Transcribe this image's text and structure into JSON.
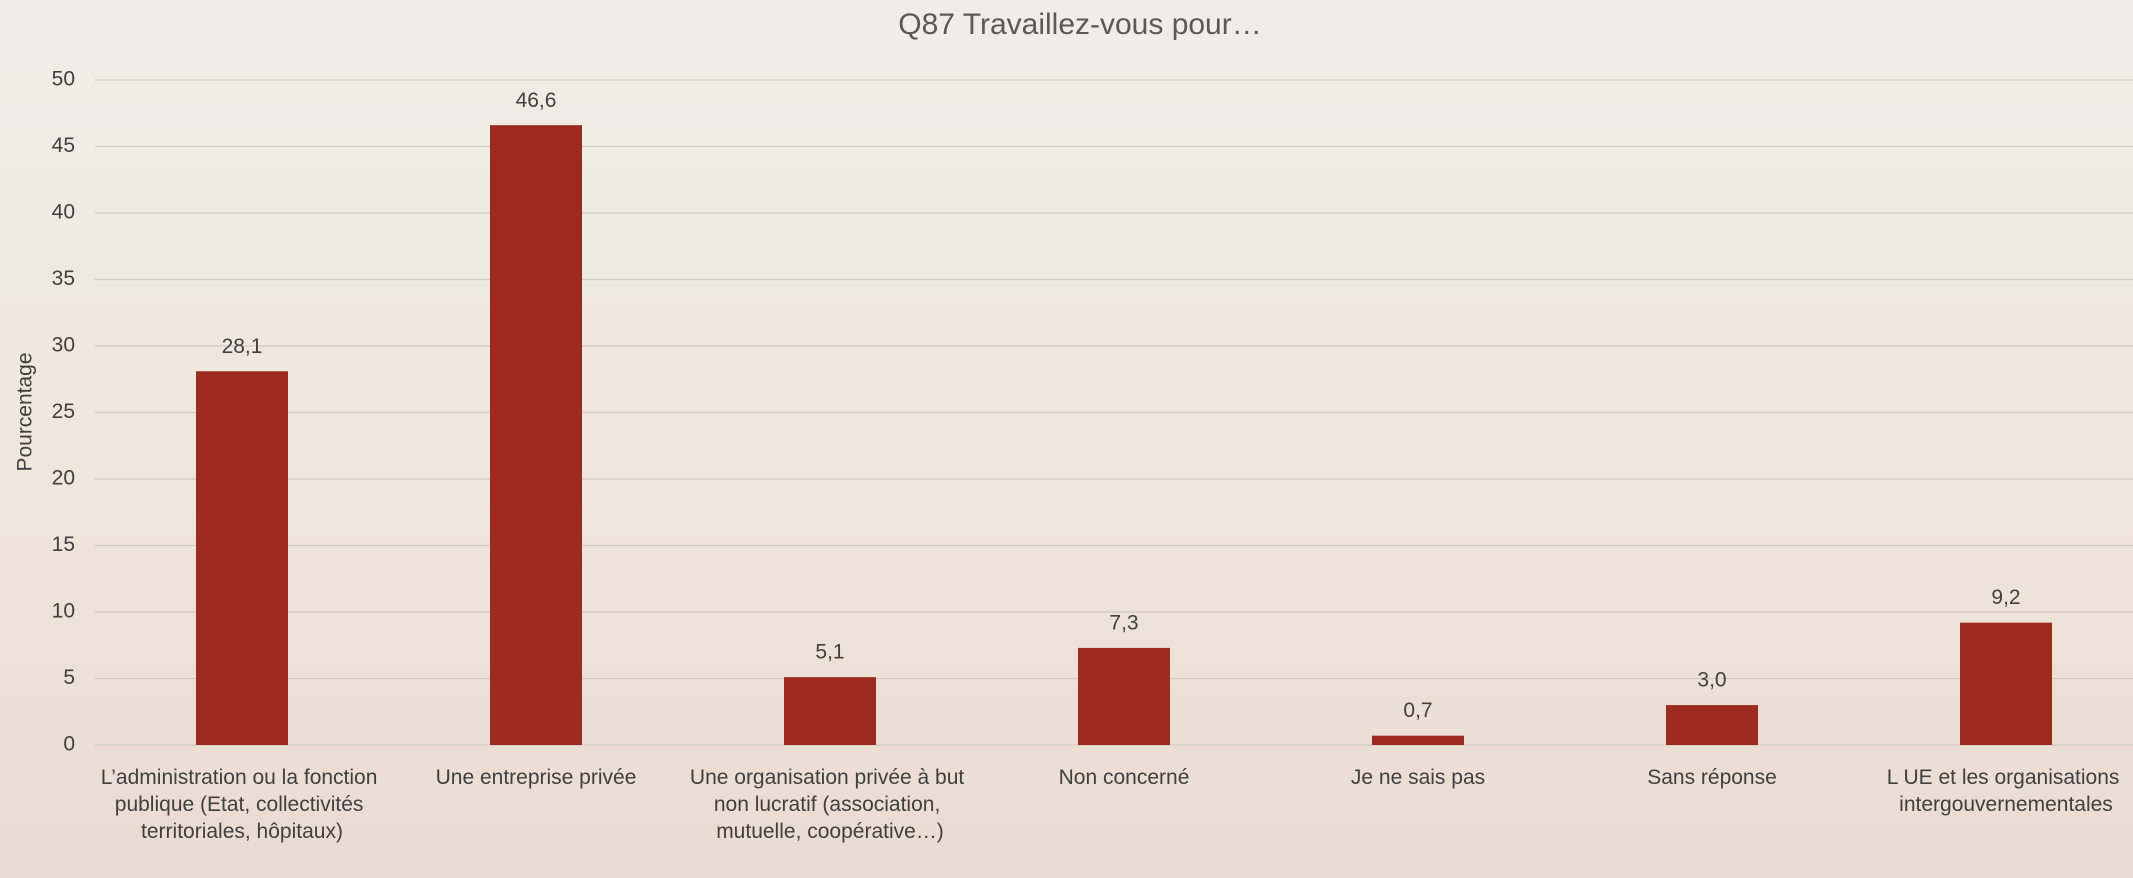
{
  "chart_data": {
    "type": "bar",
    "title": "Q87 Travaillez-vous pour…",
    "y_label": "Pourcentage",
    "categories": [
      "L’administration ou la fonction publique (Etat, collectivités territoriales, hôpitaux)",
      "Une entreprise privée",
      "Une organisation privée à but non lucratif (association, mutuelle, coopérative…)",
      "Non concerné",
      "Je ne sais pas",
      "Sans réponse",
      "L UE et les organisations intergouvernementales"
    ],
    "values": [
      28.1,
      46.6,
      5.1,
      7.3,
      0.7,
      3.0,
      9.2
    ],
    "value_labels": [
      "28,1",
      "46,6",
      "5,1",
      "7,3",
      "0,7",
      "3,0",
      "9,2"
    ],
    "color": "#9c2a1f",
    "ylim": [
      0,
      50
    ],
    "yticks": [
      0,
      5,
      10,
      15,
      20,
      25,
      30,
      35,
      40,
      45,
      50
    ],
    "grid": true
  }
}
